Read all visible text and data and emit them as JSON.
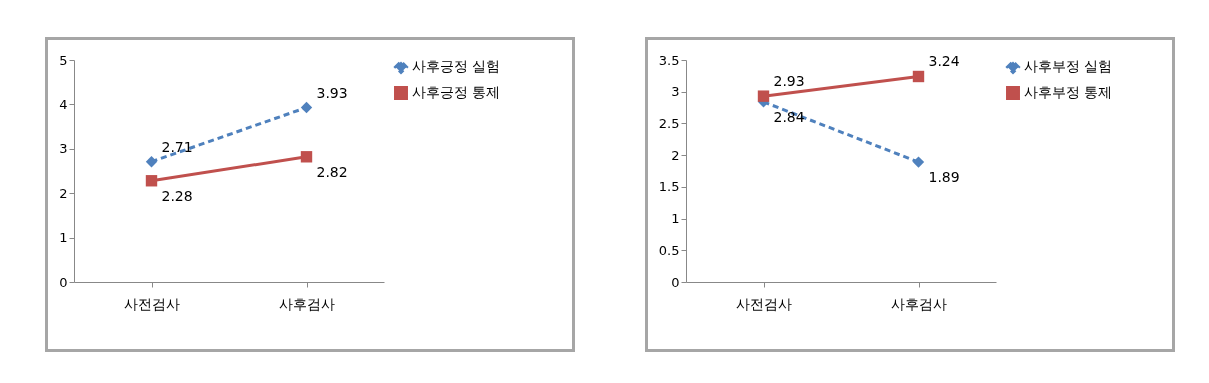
{
  "chart_data": [
    {
      "type": "line",
      "categories": [
        "사전검사",
        "사후검사"
      ],
      "ylim": [
        0,
        5
      ],
      "yticks": [
        0,
        1,
        2,
        3,
        4,
        5
      ],
      "legend": "right",
      "data_labels": true,
      "series": [
        {
          "name": "사후긍정 실험",
          "color": "#4f81bd",
          "values": [
            2.71,
            3.93
          ],
          "marker": "diamond",
          "line_style": "dashed"
        },
        {
          "name": "사후긍정 통제",
          "color": "#c0504d",
          "values": [
            2.28,
            2.82
          ],
          "marker": "square",
          "line_style": "solid"
        }
      ]
    },
    {
      "type": "line",
      "categories": [
        "사전검사",
        "사후검사"
      ],
      "ylim": [
        0,
        3.5
      ],
      "yticks": [
        0,
        0.5,
        1,
        1.5,
        2,
        2.5,
        3,
        3.5
      ],
      "legend": "right",
      "data_labels": true,
      "series": [
        {
          "name": "사후부정 실험",
          "color": "#4f81bd",
          "values": [
            2.84,
            1.89
          ],
          "marker": "diamond",
          "line_style": "dashed"
        },
        {
          "name": "사후부정 통제",
          "color": "#c0504d",
          "values": [
            2.93,
            3.24
          ],
          "marker": "square",
          "line_style": "solid"
        }
      ]
    }
  ]
}
